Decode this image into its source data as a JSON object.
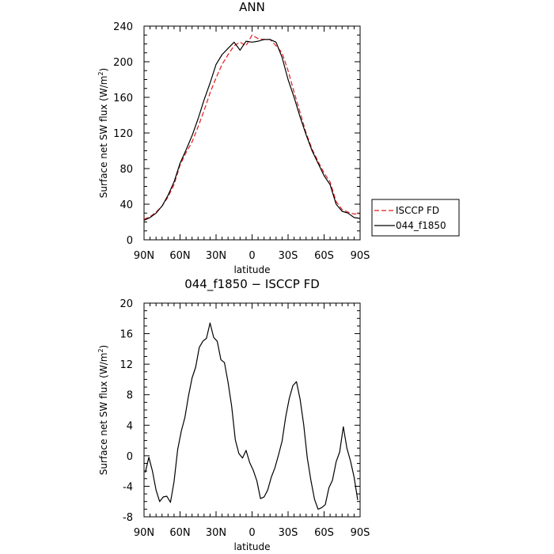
{
  "chart_data": [
    {
      "type": "line",
      "title": "ANN",
      "xlabel": "latitude",
      "ylabel": "Surface net SW flux (W/m²)",
      "ylabel_main": "Surface net SW flux (W/m",
      "ylabel_sup": "2",
      "ylabel_tail": ")",
      "xlim": [
        -90,
        90
      ],
      "ylim": [
        0,
        240
      ],
      "xticks": [
        -90,
        -60,
        -30,
        0,
        30,
        60,
        90
      ],
      "xtick_labels": [
        "90N",
        "60N",
        "30N",
        "0",
        "30S",
        "60S",
        "90S"
      ],
      "yticks": [
        0,
        40,
        80,
        120,
        160,
        200,
        240
      ],
      "ytick_labels": [
        "0",
        "40",
        "80",
        "120",
        "160",
        "200",
        "240"
      ],
      "legend": "outside-right",
      "series": [
        {
          "name": "ISCCP FD",
          "color": "#e41a1c",
          "dash": true,
          "x": [
            -90,
            -85,
            -80,
            -75,
            -70,
            -65,
            -60,
            -55,
            -50,
            -45,
            -40,
            -35,
            -30,
            -25,
            -20,
            -15,
            -10,
            -5,
            0,
            5,
            10,
            15,
            20,
            25,
            30,
            35,
            40,
            45,
            50,
            55,
            60,
            65,
            70,
            75,
            80,
            85,
            90
          ],
          "y": [
            23,
            26,
            31,
            38,
            48,
            62,
            84,
            98,
            110,
            127,
            145,
            165,
            182,
            197,
            208,
            218,
            222,
            218,
            230,
            226,
            225,
            225,
            218,
            210,
            190,
            166,
            143,
            120,
            102,
            88,
            75,
            65,
            43,
            34,
            31,
            29,
            29
          ]
        },
        {
          "name": "044_f1850",
          "color": "#000000",
          "dash": false,
          "x": [
            -90,
            -85,
            -80,
            -75,
            -70,
            -65,
            -60,
            -55,
            -50,
            -45,
            -40,
            -35,
            -30,
            -25,
            -20,
            -15,
            -10,
            -5,
            0,
            5,
            10,
            15,
            20,
            25,
            30,
            35,
            40,
            45,
            50,
            55,
            60,
            65,
            70,
            75,
            80,
            85,
            90
          ],
          "y": [
            22,
            25,
            30,
            38,
            50,
            65,
            86,
            101,
            117,
            136,
            157,
            176,
            197,
            208,
            215,
            222,
            213,
            223,
            222,
            223,
            225,
            225,
            222,
            205,
            180,
            160,
            138,
            118,
            100,
            86,
            72,
            62,
            40,
            32,
            30,
            25,
            24
          ]
        }
      ]
    },
    {
      "type": "line",
      "title": "044_f1850 − ISCCP FD",
      "xlabel": "latitude",
      "ylabel": "Surface net SW flux (W/m²)",
      "ylabel_main": "Surface net SW flux (W/m",
      "ylabel_sup": "2",
      "ylabel_tail": ")",
      "xlim": [
        -90,
        90
      ],
      "ylim": [
        -8,
        20
      ],
      "xticks": [
        -90,
        -60,
        -30,
        0,
        30,
        60,
        90
      ],
      "xtick_labels": [
        "90N",
        "60N",
        "30N",
        "0",
        "30S",
        "60S",
        "90S"
      ],
      "yticks": [
        -8,
        -4,
        0,
        4,
        8,
        12,
        16,
        20
      ],
      "ytick_labels": [
        "-8",
        "-4",
        "0",
        "4",
        "8",
        "12",
        "16",
        "20"
      ],
      "series": [
        {
          "color": "#000000",
          "x": [
            -89,
            -86,
            -83,
            -80,
            -77,
            -74,
            -71,
            -68,
            -65,
            -62,
            -59,
            -56,
            -53,
            -50,
            -47,
            -44,
            -41,
            -38,
            -35,
            -32,
            -29,
            -26,
            -23,
            -20,
            -17,
            -14,
            -11,
            -8,
            -5,
            -2,
            1,
            4,
            7,
            10,
            13,
            16,
            19,
            22,
            25,
            28,
            31,
            34,
            37,
            40,
            43,
            46,
            49,
            52,
            55,
            58,
            61,
            64,
            67,
            70,
            73,
            76,
            79,
            82,
            85,
            88
          ],
          "y": [
            -2.2,
            -0.2,
            -2.0,
            -4.5,
            -6.0,
            -5.4,
            -5.3,
            -6.1,
            -3.4,
            0.8,
            3.2,
            5.0,
            7.8,
            10.2,
            11.6,
            14.2,
            15.0,
            15.4,
            17.4,
            15.5,
            15.0,
            12.6,
            12.2,
            9.6,
            6.5,
            2.1,
            0.3,
            -0.3,
            0.7,
            -0.9,
            -1.9,
            -3.3,
            -5.6,
            -5.4,
            -4.5,
            -2.8,
            -1.6,
            0.1,
            1.9,
            5.1,
            7.5,
            9.2,
            9.7,
            7.4,
            4.1,
            -0.3,
            -3.2,
            -5.7,
            -7.0,
            -6.8,
            -6.4,
            -4.2,
            -3.2,
            -0.8,
            0.5,
            3.8,
            1.0,
            -0.7,
            -2.8,
            -5.8
          ]
        }
      ]
    }
  ]
}
